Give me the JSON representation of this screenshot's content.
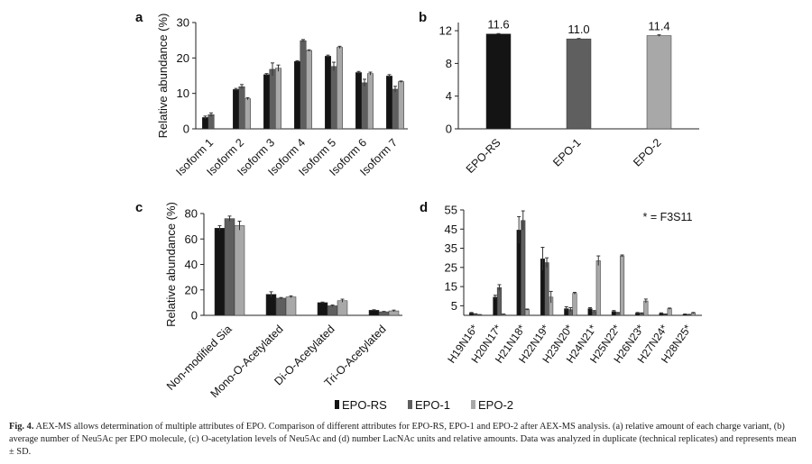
{
  "figure": {
    "legend": [
      "EPO-RS",
      "EPO-1",
      "EPO-2"
    ],
    "colors": {
      "EPO-RS": "#141414",
      "EPO-1": "#5f5f5f",
      "EPO-2": "#a8a8a8"
    },
    "caption": {
      "label": "Fig. 4.",
      "text": "AEX-MS allows determination of multiple attributes of EPO. Comparison of different attributes for EPO-RS, EPO-1 and EPO-2 after AEX-MS analysis. (a) relative amount of each charge variant, (b) average number of Neu5Ac per EPO molecule, (c) O-acetylation levels of Neu5Ac and (d) number LacNAc units and relative amounts. Data was analyzed in duplicate (technical replicates) and represents mean ± SD."
    }
  },
  "chart_data": [
    {
      "panel": "a",
      "type": "bar",
      "ylabel": "Relative abundance (%)",
      "ylim": [
        0,
        30
      ],
      "yticks": [
        0,
        10,
        20,
        30
      ],
      "categories": [
        "Isoform 1",
        "Isoform 2",
        "Isoform 3",
        "Isoform 4",
        "Isoform 5",
        "Isoform 6",
        "Isoform 7"
      ],
      "series": [
        {
          "name": "EPO-RS",
          "values": [
            3.2,
            11.1,
            15.3,
            19.0,
            20.5,
            15.9,
            14.9
          ],
          "errors": [
            0.4,
            0.3,
            0.3,
            0.2,
            0.3,
            0.3,
            0.4
          ]
        },
        {
          "name": "EPO-1",
          "values": [
            4.0,
            11.9,
            16.8,
            24.9,
            17.6,
            13.0,
            11.2
          ],
          "errors": [
            0.5,
            0.6,
            1.8,
            0.3,
            1.2,
            1.0,
            0.8
          ]
        },
        {
          "name": "EPO-2",
          "values": [
            0.0,
            8.5,
            17.1,
            22.1,
            23.0,
            15.6,
            13.3
          ],
          "errors": [
            0.0,
            0.3,
            0.9,
            0.2,
            0.3,
            0.4,
            0.2
          ]
        }
      ]
    },
    {
      "panel": "b",
      "type": "bar",
      "ylim": [
        0,
        13
      ],
      "yticks": [
        0,
        4,
        8,
        12
      ],
      "categories": [
        "EPO-RS",
        "EPO-1",
        "EPO-2"
      ],
      "series": [
        {
          "name": "EPO",
          "values": [
            11.6,
            11.0,
            11.4
          ],
          "labels": [
            "11.6",
            "11.0",
            "11.4"
          ],
          "errors": [
            0.05,
            0.05,
            0.1
          ]
        }
      ]
    },
    {
      "panel": "c",
      "type": "bar",
      "ylabel": "Relative abundance (%)",
      "ylim": [
        0,
        80
      ],
      "yticks": [
        0,
        20,
        40,
        60,
        80
      ],
      "categories": [
        "Non-modified Sia",
        "Mono-O-Acetylated",
        "Di-O-Acetylated",
        "Tri-O-Acetylated"
      ],
      "series": [
        {
          "name": "EPO-RS",
          "values": [
            68.5,
            16.5,
            10.0,
            4.0
          ],
          "errors": [
            2.0,
            2.0,
            0.4,
            0.4
          ]
        },
        {
          "name": "EPO-1",
          "values": [
            76.0,
            13.5,
            7.5,
            2.8
          ],
          "errors": [
            2.0,
            0.5,
            0.6,
            0.3
          ]
        },
        {
          "name": "EPO-2",
          "values": [
            70.5,
            14.5,
            11.5,
            3.5
          ],
          "errors": [
            3.5,
            0.8,
            1.2,
            0.6
          ]
        }
      ]
    },
    {
      "panel": "d",
      "type": "bar",
      "annotation": "* = F3S11",
      "ylim": [
        0,
        55
      ],
      "yticks": [
        5,
        15,
        25,
        35,
        45,
        55
      ],
      "categories": [
        "H19N16*",
        "H20N17*",
        "H21N18*",
        "H22N19*",
        "H23N20*",
        "H24N21*",
        "H25N22*",
        "H26N23*",
        "H27N24*",
        "H28N25*"
      ],
      "series": [
        {
          "name": "EPO-RS",
          "values": [
            1.2,
            9.5,
            44.5,
            29.5,
            3.5,
            3.5,
            2.0,
            1.2,
            1.0,
            0.5
          ],
          "errors": [
            0.3,
            1.0,
            7.0,
            6.0,
            1.0,
            0.5,
            0.5,
            0.3,
            0.3,
            0.2
          ]
        },
        {
          "name": "EPO-1",
          "values": [
            0.6,
            14.5,
            49.5,
            27.5,
            3.0,
            2.0,
            1.2,
            1.0,
            0.5,
            0.3
          ],
          "errors": [
            0.2,
            1.5,
            5.0,
            2.5,
            1.0,
            0.5,
            0.3,
            0.3,
            0.2,
            0.2
          ]
        },
        {
          "name": "EPO-2",
          "values": [
            0.3,
            0.5,
            3.0,
            9.5,
            11.5,
            28.5,
            31.0,
            7.5,
            3.5,
            1.2
          ],
          "errors": [
            0.1,
            0.2,
            0.3,
            3.0,
            0.5,
            2.5,
            0.5,
            1.0,
            0.3,
            0.3
          ]
        }
      ]
    }
  ]
}
